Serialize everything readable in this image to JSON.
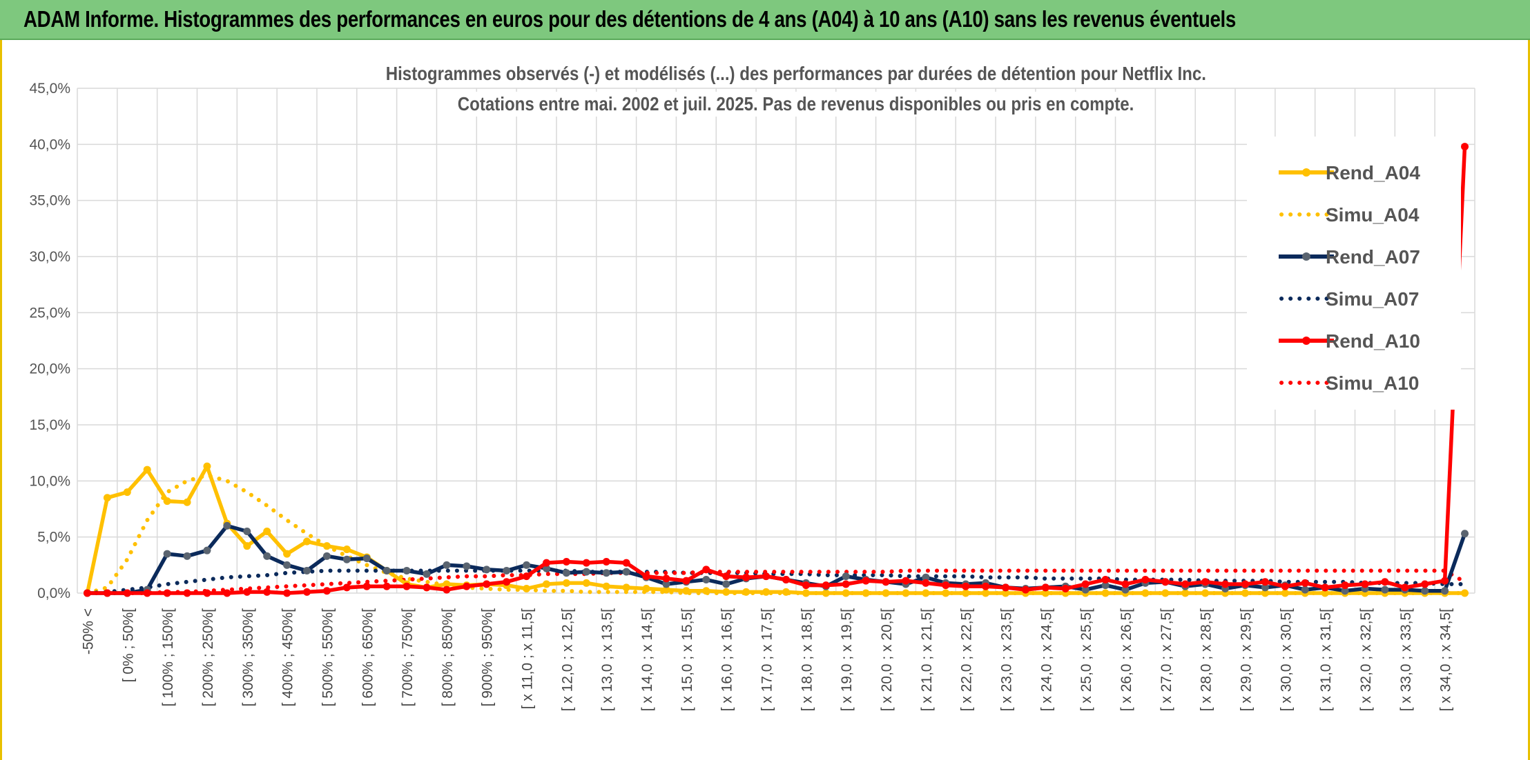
{
  "header": {
    "title": "ADAM Informe. Histogrammes des performances en euros pour des détentions de 4 ans (A04) à 10 ans (A10) sans les revenus éventuels"
  },
  "chart_data": {
    "type": "line",
    "title_line1": "Histogrammes observés (-) et modélisés (...) des performances par durées de détention pour Netflix Inc.",
    "title_line2": "Cotations entre mai. 2002 et juil. 2025. Pas de revenus disponibles ou pris en compte.",
    "ylim": [
      0,
      45
    ],
    "yticks": [
      "0,0%",
      "5,0%",
      "10,0%",
      "15,0%",
      "20,0%",
      "25,0%",
      "30,0%",
      "35,0%",
      "40,0%",
      "45,0%"
    ],
    "grid": true,
    "legend_position": "top-right",
    "x_tick_labels": [
      "-50% <",
      "[ 0% ; 50%[",
      "[ 100% ; 150%[",
      "[ 200% ; 250%[",
      "[ 300% ; 350%[",
      "[ 400% ; 450%[",
      "[ 500% ; 550%[",
      "[ 600% ; 650%[",
      "[ 700% ; 750%[",
      "[ 800% ; 850%[",
      "[ 900% ; 950%[",
      "[ x 11,0 ; x 11,5[",
      "[ x 12,0 ; x 12,5[",
      "[ x 13,0 ; x 13,5[",
      "[ x 14,0 ; x 14,5[",
      "[ x 15,0 ; x 15,5[",
      "[ x 16,0 ; x 16,5[",
      "[ x 17,0 ; x 17,5[",
      "[ x 18,0 ; x 18,5[",
      "[ x 19,0 ; x 19,5[",
      "[ x 20,0 ; x 20,5[",
      "[ x 21,0 ; x 21,5[",
      "[ x 22,0 ; x 22,5[",
      "[ x 23,0 ; x 23,5[",
      "[ x 24,0 ; x 24,5[",
      "[ x 25,0 ; x 25,5[",
      "[ x 26,0 ; x 26,5[",
      "[ x 27,0 ; x 27,5[",
      "[ x 28,0 ; x 28,5[",
      "[ x 29,0 ; x 29,5[",
      "[ x 30,0 ; x 30,5[",
      "[ x 31,0 ; x 31,5[",
      "[ x 32,0 ; x 32,5[",
      "[ x 33,0 ; x 33,5[",
      "[ x 34,0 ; x 34,5["
    ],
    "n_categories": 70,
    "series": [
      {
        "name": "Rend_A04",
        "color": "#FFC000",
        "style": "solid",
        "values": [
          0.0,
          8.5,
          9.0,
          11.0,
          8.2,
          8.1,
          11.3,
          6.2,
          4.2,
          5.5,
          3.5,
          4.6,
          4.2,
          3.9,
          3.2,
          2.0,
          0.8,
          0.5,
          0.8,
          0.7,
          0.8,
          0.7,
          0.4,
          0.8,
          0.9,
          0.9,
          0.6,
          0.5,
          0.4,
          0.3,
          0.2,
          0.2,
          0.1,
          0.1,
          0.1,
          0.1,
          0.0,
          0.0,
          0.0,
          0.0,
          0.0,
          0.0,
          0.0,
          0.0,
          0.0,
          0.0,
          0.0,
          0.0,
          0.0,
          0.0,
          0.0,
          0.0,
          0.0,
          0.0,
          0.0,
          0.0,
          0.0,
          0.0,
          0.0,
          0.0,
          0.0,
          0.0,
          0.0,
          0.0,
          0.0,
          0.0,
          0.0,
          0.0,
          0.0,
          0.0
        ]
      },
      {
        "name": "Simu_A04",
        "color": "#FFC000",
        "style": "dotted",
        "values": [
          0.0,
          0.5,
          3.0,
          6.5,
          9.0,
          10.0,
          10.5,
          10.0,
          9.0,
          7.8,
          6.5,
          5.3,
          4.2,
          3.3,
          2.5,
          1.8,
          1.3,
          1.0,
          0.7,
          0.5,
          0.4,
          0.3,
          0.3,
          0.2,
          0.2,
          0.1,
          0.1,
          0.1,
          0.1,
          0.1,
          0.0,
          0.0,
          0.0,
          0.0,
          0.0,
          0.0,
          0.0,
          0.0,
          0.0,
          0.0,
          0.0,
          0.0,
          0.0,
          0.0,
          0.0,
          0.0,
          0.0,
          0.0,
          0.0,
          0.0,
          0.0,
          0.0,
          0.0,
          0.0,
          0.0,
          0.0,
          0.0,
          0.0,
          0.0,
          0.0,
          0.0,
          0.0,
          0.0,
          0.0,
          0.0,
          0.0,
          0.0,
          0.0,
          0.0,
          0.0
        ]
      },
      {
        "name": "Rend_A07",
        "color": "#0B2A5B",
        "marker": "#5A6470",
        "style": "solid",
        "values": [
          0.0,
          0.0,
          0.0,
          0.3,
          3.5,
          3.3,
          3.8,
          6.0,
          5.5,
          3.3,
          2.5,
          2.0,
          3.3,
          3.0,
          3.1,
          2.0,
          2.0,
          1.7,
          2.5,
          2.4,
          2.1,
          2.0,
          2.5,
          2.2,
          1.8,
          1.9,
          1.8,
          1.9,
          1.4,
          0.8,
          1.0,
          1.2,
          0.8,
          1.3,
          1.5,
          1.2,
          0.9,
          0.6,
          1.5,
          1.2,
          1.0,
          0.8,
          1.4,
          0.9,
          0.8,
          0.9,
          0.5,
          0.4,
          0.5,
          0.6,
          0.3,
          0.7,
          0.3,
          0.9,
          1.0,
          0.6,
          0.8,
          0.4,
          0.7,
          0.5,
          0.7,
          0.3,
          0.5,
          0.2,
          0.4,
          0.3,
          0.3,
          0.2,
          0.2,
          5.3
        ]
      },
      {
        "name": "Simu_A07",
        "color": "#0B2A5B",
        "style": "dotted",
        "values": [
          0.0,
          0.1,
          0.3,
          0.5,
          0.8,
          1.0,
          1.2,
          1.4,
          1.5,
          1.6,
          1.8,
          1.9,
          2.0,
          2.0,
          2.0,
          2.0,
          2.0,
          2.0,
          2.0,
          2.0,
          2.0,
          2.0,
          2.0,
          2.0,
          2.0,
          1.9,
          1.9,
          1.9,
          1.9,
          1.9,
          1.8,
          1.8,
          1.8,
          1.8,
          1.7,
          1.7,
          1.7,
          1.6,
          1.6,
          1.6,
          1.6,
          1.5,
          1.5,
          1.5,
          1.5,
          1.4,
          1.4,
          1.4,
          1.3,
          1.3,
          1.3,
          1.3,
          1.2,
          1.2,
          1.2,
          1.2,
          1.1,
          1.1,
          1.1,
          1.1,
          1.0,
          1.0,
          1.0,
          1.0,
          0.9,
          0.9,
          0.9,
          0.9,
          0.8,
          0.8
        ]
      },
      {
        "name": "Rend_A10",
        "color": "#FF0000",
        "style": "solid",
        "values": [
          0.0,
          0.0,
          0.0,
          0.0,
          0.0,
          0.0,
          0.0,
          0.0,
          0.1,
          0.1,
          0.0,
          0.1,
          0.2,
          0.5,
          0.6,
          0.6,
          0.6,
          0.5,
          0.3,
          0.6,
          0.8,
          1.0,
          1.5,
          2.7,
          2.8,
          2.7,
          2.8,
          2.7,
          1.5,
          1.3,
          1.1,
          2.1,
          1.5,
          1.4,
          1.5,
          1.2,
          0.7,
          0.7,
          0.8,
          1.1,
          1.0,
          1.1,
          0.9,
          0.7,
          0.6,
          0.6,
          0.5,
          0.3,
          0.5,
          0.4,
          0.8,
          1.2,
          0.8,
          1.2,
          1.0,
          0.8,
          1.0,
          0.8,
          0.8,
          1.0,
          0.6,
          0.9,
          0.5,
          0.7,
          0.8,
          1.0,
          0.5,
          0.8,
          1.1,
          39.8
        ]
      },
      {
        "name": "Simu_A10",
        "color": "#FF0000",
        "style": "dotted",
        "values": [
          0.0,
          0.0,
          0.0,
          0.0,
          0.1,
          0.1,
          0.2,
          0.3,
          0.4,
          0.5,
          0.6,
          0.7,
          0.8,
          0.9,
          1.0,
          1.1,
          1.2,
          1.3,
          1.4,
          1.5,
          1.5,
          1.6,
          1.6,
          1.7,
          1.7,
          1.7,
          1.8,
          1.8,
          1.8,
          1.8,
          1.8,
          1.9,
          1.9,
          1.9,
          1.9,
          1.9,
          1.9,
          1.9,
          1.9,
          1.9,
          1.9,
          2.0,
          2.0,
          2.0,
          2.0,
          2.0,
          2.0,
          2.0,
          2.0,
          2.0,
          2.0,
          2.0,
          2.0,
          2.0,
          2.0,
          2.0,
          2.0,
          2.0,
          2.0,
          2.0,
          2.0,
          2.0,
          2.0,
          2.0,
          2.0,
          2.0,
          2.0,
          2.0,
          2.0,
          1.0
        ]
      }
    ]
  }
}
